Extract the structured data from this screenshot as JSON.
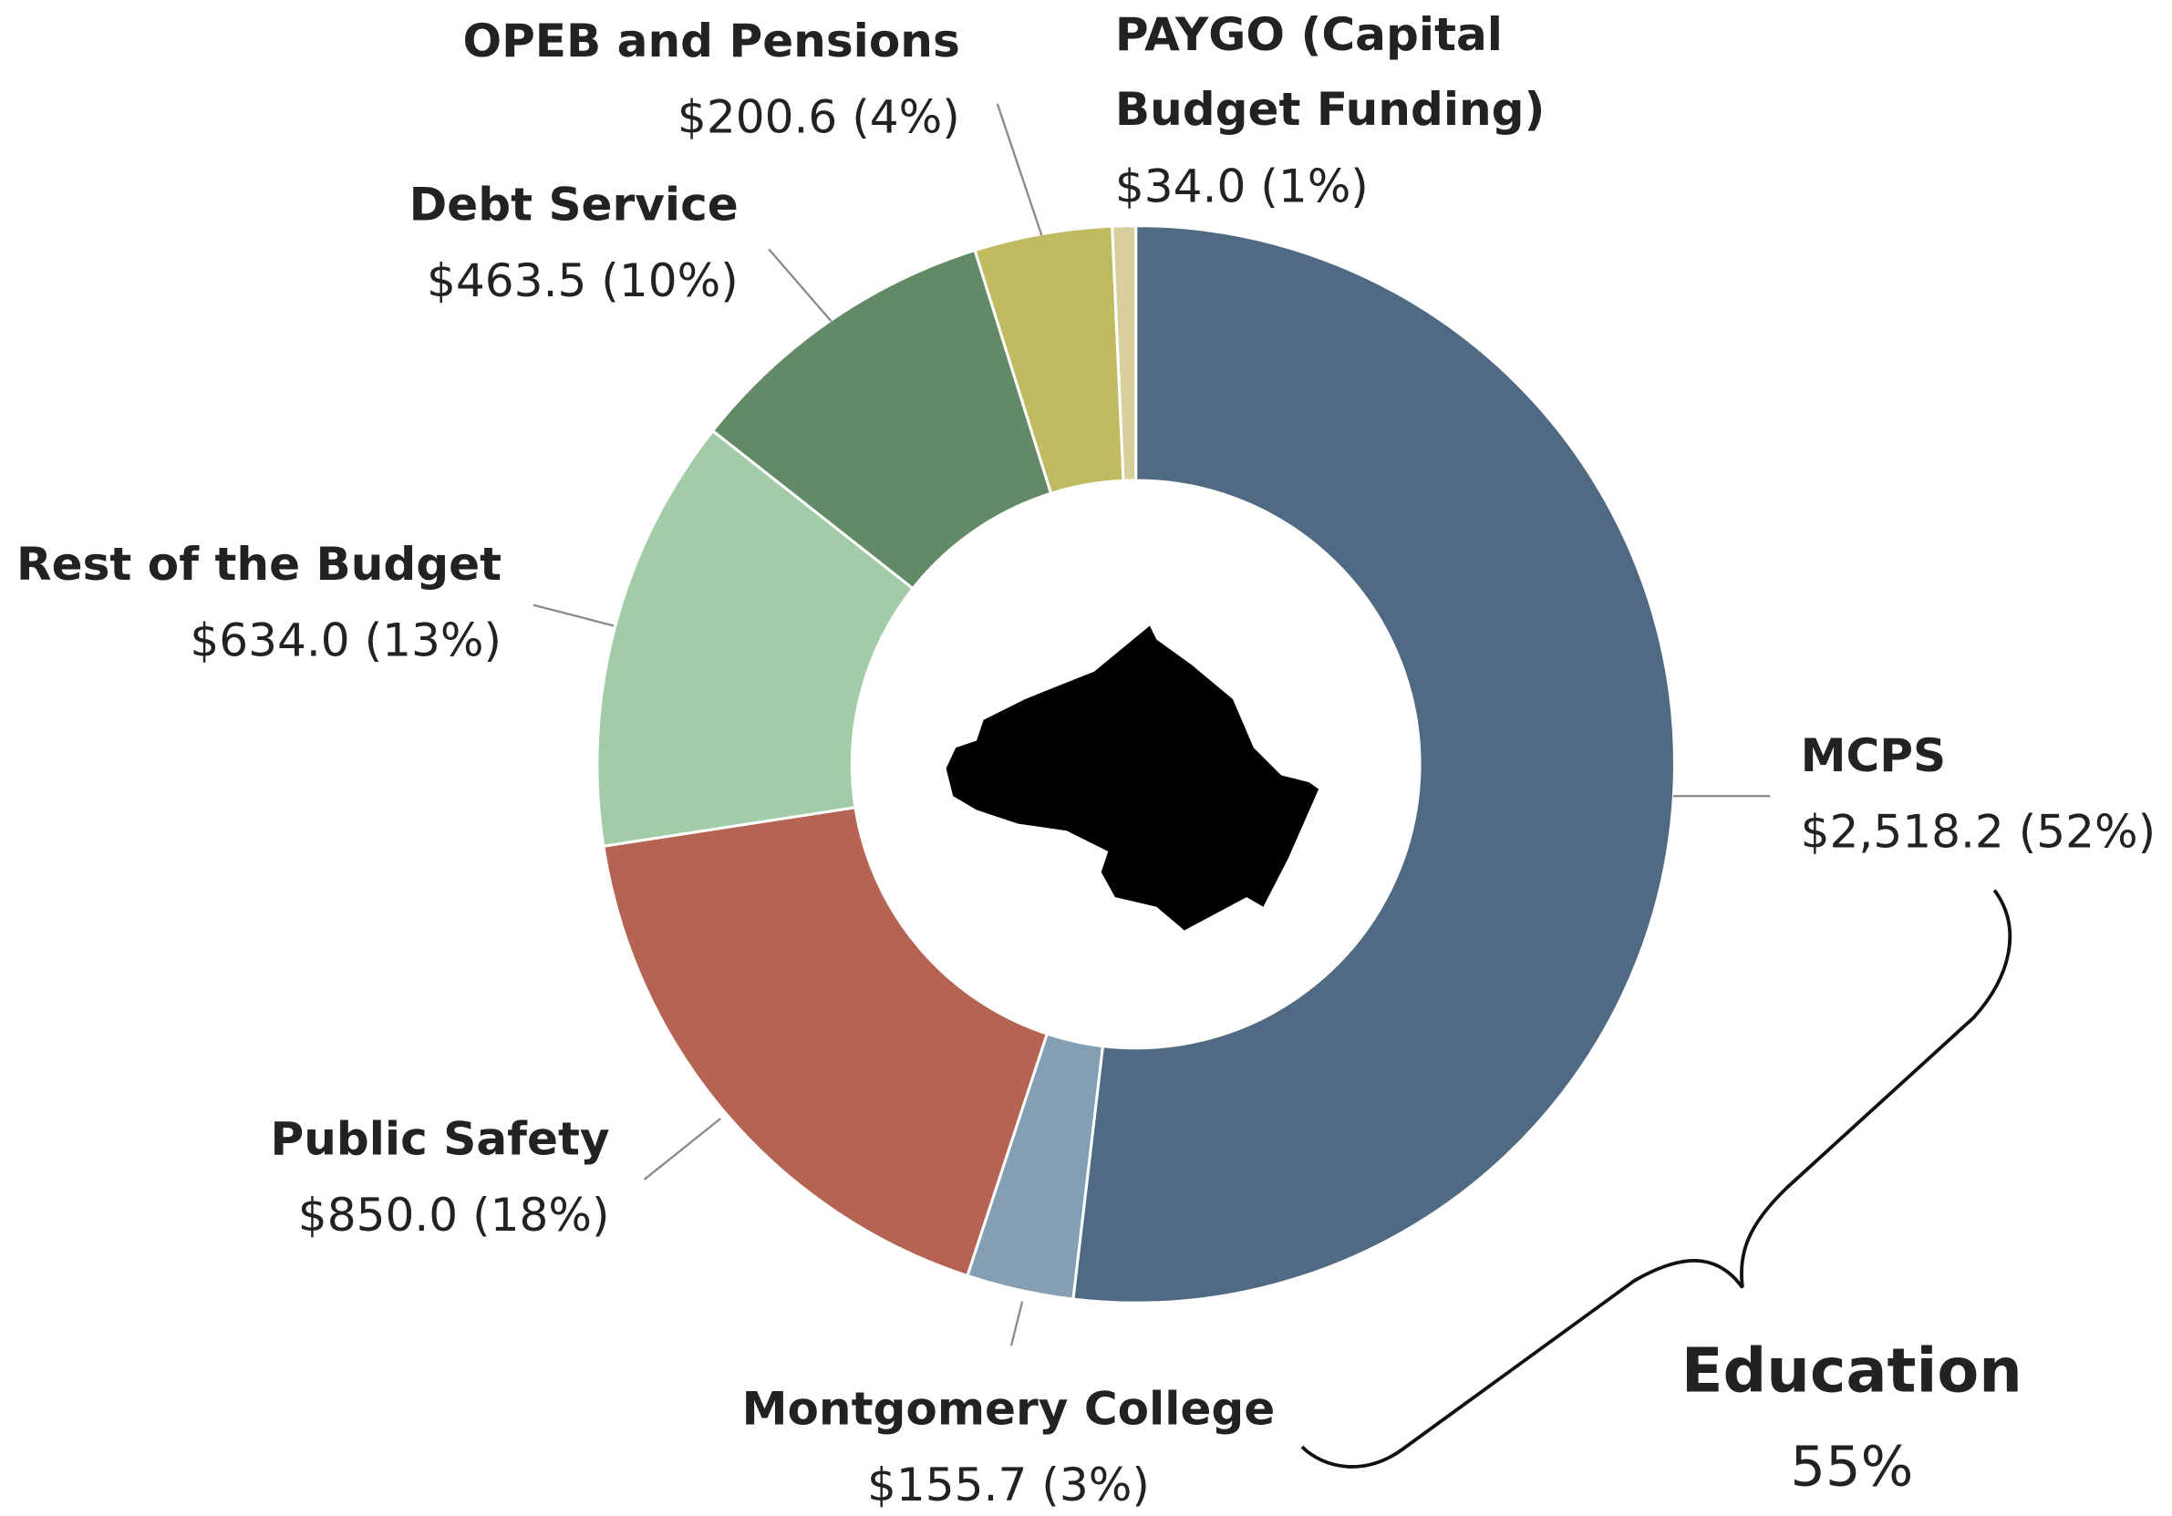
{
  "chart_data": {
    "type": "donut",
    "categories": [
      "MCPS",
      "Montgomery College",
      "Public Safety",
      "Rest of the Budget",
      "Debt Service",
      "OPEB and Pensions",
      "PAYGO (Capital Budget Funding)"
    ],
    "values": [
      2518.2,
      155.7,
      850.0,
      634.0,
      463.5,
      200.6,
      34.0
    ],
    "value_labels": [
      "$2,518.2 (52%)",
      "$155.7 (3%)",
      "$850.0 (18%)",
      "$634.0 (13%)",
      "$463.5 (10%)",
      "$200.6 (4%)",
      "$34.0 (1%)"
    ],
    "colors": [
      "#4f6a82",
      "#849eb4",
      "#b56352",
      "#a2cca8",
      "#638a66",
      "#c0ba60",
      "#d9cf9b"
    ],
    "annotations": [
      "Education",
      "55%"
    ]
  }
}
